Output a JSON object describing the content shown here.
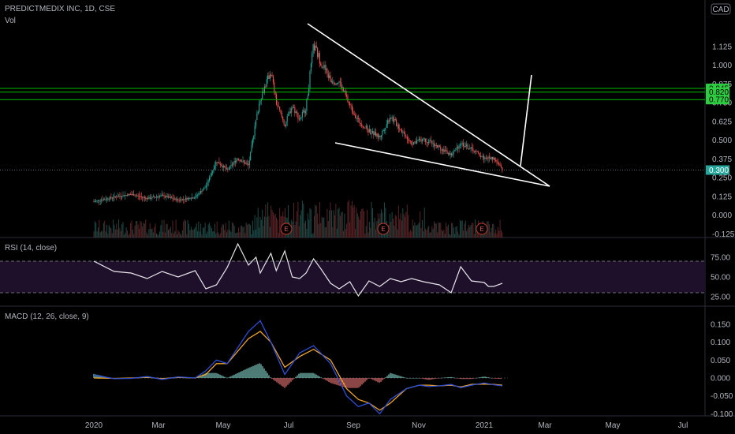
{
  "header": {
    "symbol_line": "PREDICTMEDIX INC, 1D, CSE",
    "volume_label": "Vol",
    "currency": "CAD"
  },
  "price_axis": {
    "ticks": [
      "1.125",
      "1.000",
      "0.875",
      "0.750",
      "0.625",
      "0.500",
      "0.375",
      "0.250",
      "0.125",
      "0.000",
      "-0.125"
    ]
  },
  "horizontal_levels": [
    {
      "label": "0.845",
      "value": 0.845
    },
    {
      "label": "0.820",
      "value": 0.82
    },
    {
      "label": "0.770",
      "value": 0.77
    }
  ],
  "last_price": {
    "label": "0.300",
    "value": 0.3
  },
  "earnings_markers": [
    "E",
    "E",
    "E"
  ],
  "rsi": {
    "title": "RSI (14, close)",
    "ticks": [
      "75.00",
      "50.00",
      "25.00"
    ],
    "band": [
      30,
      70
    ]
  },
  "macd": {
    "title": "MACD (12, 26, close, 9)",
    "ticks": [
      "0.150",
      "0.100",
      "0.050",
      "0.000",
      "-0.050",
      "-0.100"
    ]
  },
  "time_axis": {
    "labels": [
      "2020",
      "Mar",
      "May",
      "Jul",
      "Sep",
      "Nov",
      "2021",
      "Mar",
      "May",
      "Jul"
    ]
  },
  "colors": {
    "up": "#26a69a",
    "down": "#ef5350",
    "level_line": "#00c000",
    "level_tag": "#2ecc40",
    "rsi_band": "#1e0f2b",
    "rsi_line": "#e6e6ea",
    "macd_line": "#2f4fd6",
    "signal_line": "#f0a52a",
    "trendline": "#ffffff"
  },
  "chart_data": [
    {
      "type": "line",
      "title": "PREDICTMEDIX INC, 1D, CSE",
      "ylabel": "",
      "xlabel": "",
      "ylim": [
        -0.125,
        1.15
      ],
      "series": [
        {
          "values": [
            0.09,
            0.12,
            0.14,
            0.11,
            0.13,
            0.1,
            0.12,
            0.19,
            0.36,
            0.3,
            0.38,
            0.33,
            0.63,
            0.78,
            0.96,
            0.75,
            0.6,
            0.73,
            0.64,
            0.72,
            1.13,
            1.02,
            0.9,
            0.89,
            0.73,
            0.63,
            0.56,
            0.52,
            0.66,
            0.57,
            0.48,
            0.51,
            0.45,
            0.4,
            0.48,
            0.44,
            0.38,
            0.38,
            0.3
          ]
        }
      ],
      "x": [
        "2020-01-01",
        "2020-01-20",
        "2020-02-05",
        "2020-02-20",
        "2020-03-05",
        "2020-03-20",
        "2020-04-05",
        "2020-04-15",
        "2020-04-25",
        "2020-05-05",
        "2020-05-15",
        "2020-05-25",
        "2020-06-01",
        "2020-06-05",
        "2020-06-15",
        "2020-06-20",
        "2020-06-28",
        "2020-07-05",
        "2020-07-12",
        "2020-07-18",
        "2020-07-25",
        "2020-08-01",
        "2020-08-10",
        "2020-08-18",
        "2020-08-28",
        "2020-09-05",
        "2020-09-15",
        "2020-09-25",
        "2020-10-05",
        "2020-10-15",
        "2020-10-25",
        "2020-11-05",
        "2020-11-20",
        "2020-12-01",
        "2020-12-10",
        "2020-12-20",
        "2021-01-01",
        "2021-01-10",
        "2021-01-18"
      ]
    },
    {
      "type": "line",
      "title": "RSI (14, close)",
      "ylim": [
        20,
        95
      ],
      "series": [
        {
          "values": [
            70,
            57,
            55,
            48,
            57,
            50,
            58,
            35,
            40,
            62,
            92,
            65,
            75,
            55,
            80,
            58,
            83,
            50,
            48,
            55,
            73,
            60,
            42,
            35,
            44,
            26,
            45,
            38,
            48,
            44,
            48,
            44,
            40,
            30,
            63,
            45,
            43,
            38,
            38,
            42
          ]
        }
      ],
      "x": [
        "2020-01-01",
        "2020-01-20",
        "2020-02-05",
        "2020-02-20",
        "2020-03-05",
        "2020-03-20",
        "2020-04-05",
        "2020-04-15",
        "2020-04-25",
        "2020-05-05",
        "2020-05-15",
        "2020-05-25",
        "2020-06-01",
        "2020-06-05",
        "2020-06-15",
        "2020-06-20",
        "2020-06-28",
        "2020-07-05",
        "2020-07-12",
        "2020-07-18",
        "2020-07-25",
        "2020-08-01",
        "2020-08-10",
        "2020-08-18",
        "2020-08-28",
        "2020-09-05",
        "2020-09-15",
        "2020-09-25",
        "2020-10-05",
        "2020-10-15",
        "2020-10-25",
        "2020-11-05",
        "2020-11-20",
        "2020-12-01",
        "2020-12-10",
        "2020-12-20",
        "2021-01-01",
        "2021-01-05",
        "2021-01-10",
        "2021-01-18"
      ]
    },
    {
      "type": "line",
      "title": "MACD (12, 26, close, 9)",
      "ylim": [
        -0.11,
        0.17
      ],
      "series": [
        {
          "values": [
            0.008,
            -0.002,
            -0.001,
            0.004,
            -0.004,
            0.003,
            0.0,
            0.02,
            0.05,
            0.04,
            0.13,
            0.16,
            0.1,
            0.01,
            0.07,
            0.09,
            0.04,
            -0.05,
            -0.08,
            -0.07,
            -0.1,
            -0.06,
            -0.03,
            -0.02,
            -0.024,
            -0.022,
            -0.018,
            -0.027,
            -0.02,
            -0.014,
            -0.019,
            -0.022
          ]
        },
        {
          "values": [
            0.0,
            -0.001,
            0.0,
            0.002,
            -0.002,
            0.002,
            0.0,
            0.01,
            0.04,
            0.04,
            0.11,
            0.13,
            0.1,
            0.03,
            0.06,
            0.08,
            0.05,
            -0.03,
            -0.06,
            -0.07,
            -0.09,
            -0.07,
            -0.03,
            -0.02,
            -0.02,
            -0.022,
            -0.02,
            -0.025,
            -0.018,
            -0.017,
            -0.018,
            -0.02
          ]
        }
      ],
      "x": [
        "2020-01-01",
        "2020-01-20",
        "2020-02-05",
        "2020-02-20",
        "2020-03-05",
        "2020-03-20",
        "2020-04-05",
        "2020-04-15",
        "2020-04-25",
        "2020-05-05",
        "2020-05-25",
        "2020-06-05",
        "2020-06-15",
        "2020-06-28",
        "2020-07-12",
        "2020-07-25",
        "2020-08-10",
        "2020-08-25",
        "2020-09-05",
        "2020-09-15",
        "2020-09-25",
        "2020-10-05",
        "2020-10-20",
        "2020-11-01",
        "2020-11-10",
        "2020-11-20",
        "2020-12-01",
        "2020-12-10",
        "2020-12-20",
        "2021-01-01",
        "2021-01-10",
        "2021-01-18"
      ]
    }
  ]
}
